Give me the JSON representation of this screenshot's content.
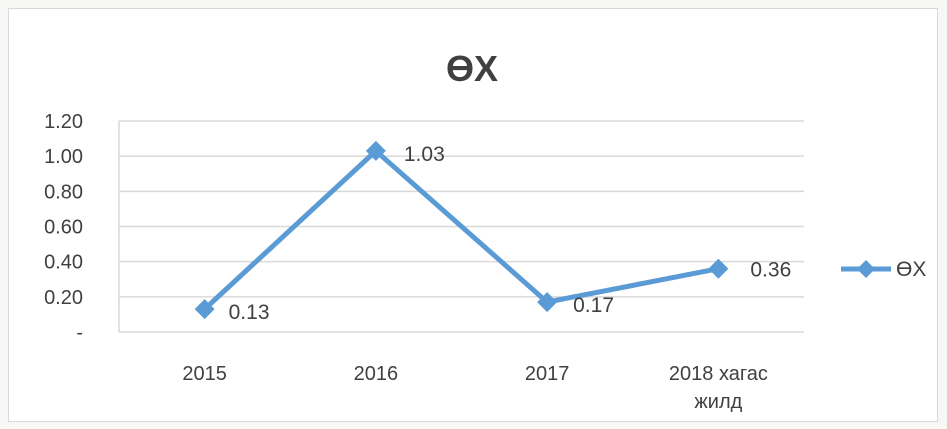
{
  "chart_data": {
    "type": "line",
    "title": "ӨХ",
    "categories": [
      "2015",
      "2016",
      "2017",
      "2018 хагас жилд"
    ],
    "category_lines": [
      [
        "2015"
      ],
      [
        "2016"
      ],
      [
        "2017"
      ],
      [
        "2018 хагас",
        "жилд"
      ]
    ],
    "series": [
      {
        "name": "ӨХ",
        "values": [
          0.13,
          1.03,
          0.17,
          0.36
        ],
        "labels": [
          "0.13",
          "1.03",
          "0.17",
          "0.36"
        ],
        "color": "#5b9bd5",
        "marker": "diamond"
      }
    ],
    "ylim": [
      0,
      1.2
    ],
    "yticks": [
      0,
      0.2,
      0.4,
      0.6,
      0.8,
      1.0,
      1.2
    ],
    "ytick_labels": [
      "-",
      "0.20",
      "0.40",
      "0.60",
      "0.80",
      "1.00",
      "1.20"
    ],
    "grid": true,
    "legend_position": "right",
    "xlabel": "",
    "ylabel": ""
  }
}
